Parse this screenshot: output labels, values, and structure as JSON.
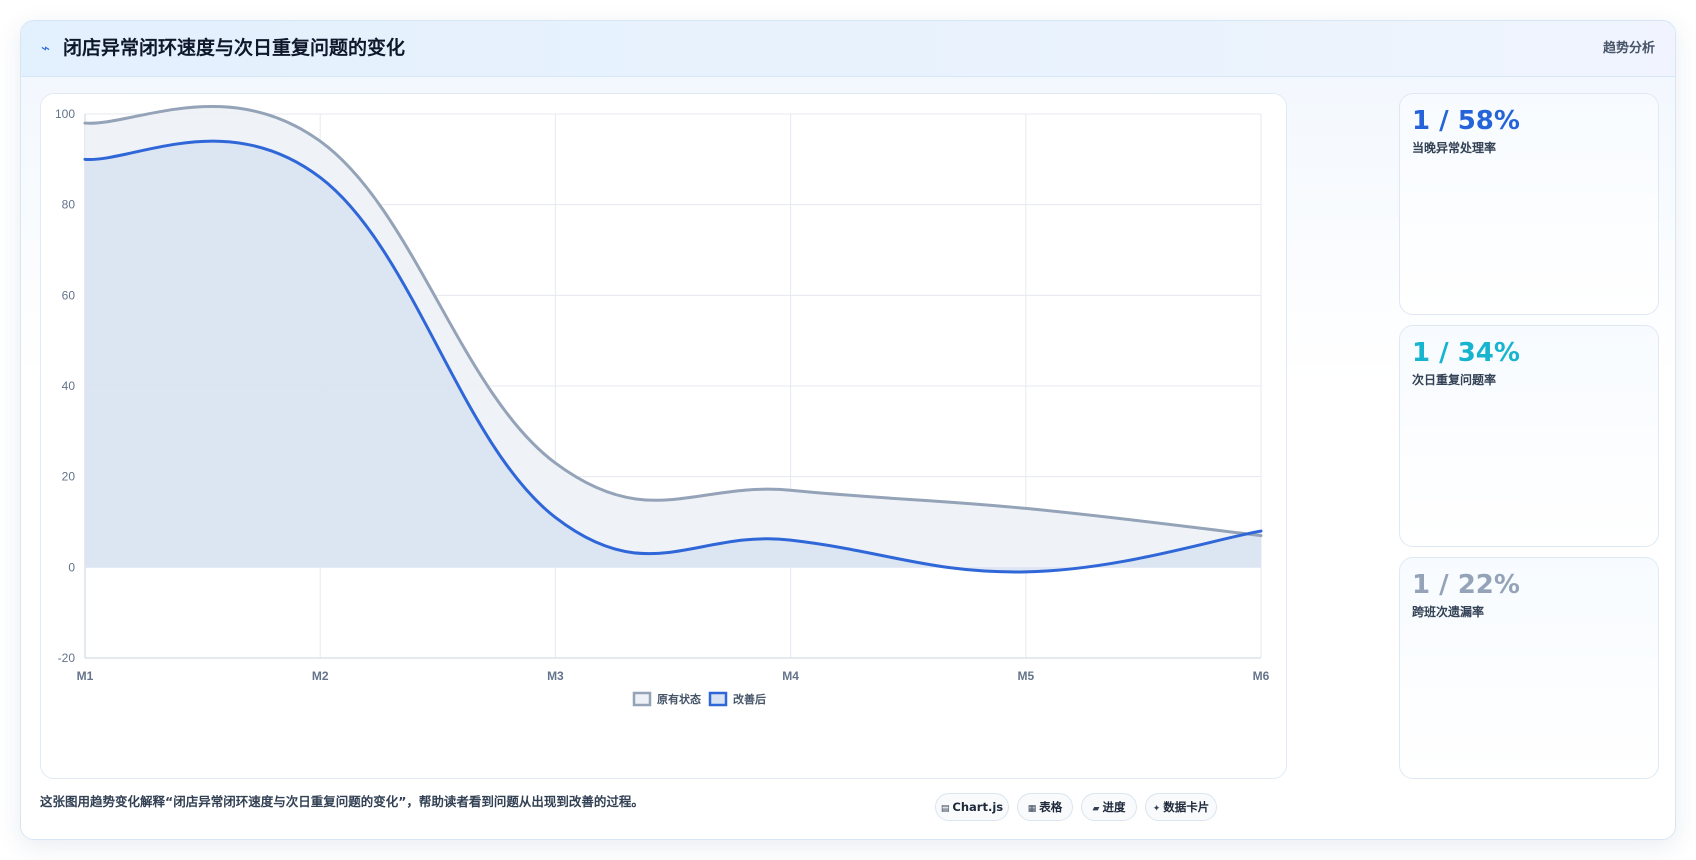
{
  "header": {
    "icon": "trend-icon",
    "title": "闭店异常闭环速度与次日重复问题的变化",
    "tag": "趋势分析"
  },
  "chart_data": {
    "type": "area",
    "title": "",
    "xlabel": "",
    "ylabel": "",
    "categories": [
      "M1",
      "M2",
      "M3",
      "M4",
      "M5",
      "M6"
    ],
    "ylim": [
      -20,
      100
    ],
    "yticks": [
      100,
      80,
      60,
      40,
      20,
      0,
      -20
    ],
    "grid": true,
    "legend_position": "bottom",
    "series": [
      {
        "name": "原有状态",
        "color": "#94a3b8",
        "fill": "#eef2f7",
        "values": [
          98,
          94,
          23,
          17,
          13,
          7
        ]
      },
      {
        "name": "改善后",
        "color": "#2f67d8",
        "fill": "#d8e2f1",
        "values": [
          90,
          86,
          11,
          6,
          -1,
          8
        ]
      }
    ]
  },
  "stats": [
    {
      "value": "1 / 58%",
      "label": "当晚异常处理率",
      "color": "#2563d9"
    },
    {
      "value": "1 / 34%",
      "label": "次日重复问题率",
      "color": "#16b4cf"
    },
    {
      "value": "1 / 22%",
      "label": "跨班次遗漏率",
      "color": "#94a3b8"
    }
  ],
  "caption": "这张图用趋势变化解释“闭店异常闭环速度与次日重复问题的变化”，帮助读者看到问题从出现到改善的过程。",
  "chips": [
    {
      "icon": "chart-icon",
      "glyph": "▤",
      "label": "Chart.js"
    },
    {
      "icon": "table-icon",
      "glyph": "▦",
      "label": "表格"
    },
    {
      "icon": "progress-icon",
      "glyph": "▰",
      "label": "进度"
    },
    {
      "icon": "card-icon",
      "glyph": "✦",
      "label": "数据卡片"
    }
  ]
}
